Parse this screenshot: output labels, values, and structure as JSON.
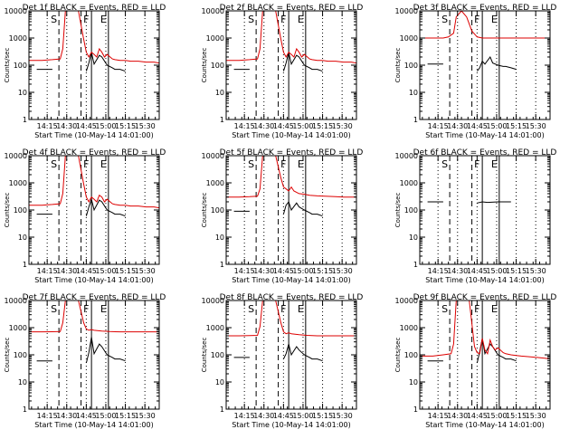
{
  "layout": {
    "rows": 3,
    "cols": 3
  },
  "colors": {
    "events": "#000000",
    "lld": "#dd0000",
    "axes": "#000000",
    "background": "#ffffff"
  },
  "common": {
    "x_tick_labels": [
      "14:15",
      "14:30",
      "14:45",
      "15:00",
      "15:15",
      "15:30"
    ],
    "y_tick_labels": [
      "1",
      "10",
      "100",
      "1000",
      "10000"
    ],
    "xlabel": "Start Time (10-May-14 14:01:00)",
    "ylabel": "Counts/sec"
  },
  "chart_data": [
    {
      "type": "line",
      "title": "Det 1f BLACK = Events, RED = LLD",
      "markers": [
        "S",
        "F",
        "E"
      ],
      "x_ticks_min": [
        14,
        29,
        44,
        59,
        74,
        89
      ],
      "xlim": [
        0,
        100
      ],
      "ylim": [
        1,
        10000
      ],
      "yscale": "log",
      "grid": "vertical-dotted",
      "dashed_lines_min": [
        23,
        40
      ],
      "solid_lines_min": [
        48,
        61
      ],
      "series": [
        {
          "name": "BLACK = Events",
          "x": [
            4,
            6,
            18,
            20,
            40,
            44,
            46,
            48,
            50,
            54,
            56,
            60,
            64,
            66,
            70,
            74,
            78
          ],
          "y": [
            null,
            70,
            70,
            null,
            null,
            60,
            120,
            300,
            110,
            230,
            200,
            100,
            80,
            70,
            70,
            60,
            null
          ],
          "segments": [
            [
              4,
              20,
              70
            ],
            [
              40,
              78,
              null
            ]
          ]
        },
        {
          "name": "RED = LLD",
          "x": [
            0,
            10,
            18,
            24,
            26,
            28,
            30,
            32,
            38,
            42,
            44,
            46,
            48,
            50,
            52,
            54,
            56,
            58,
            60,
            64,
            66,
            70,
            74,
            78,
            84,
            90,
            96,
            100
          ],
          "y": [
            150,
            150,
            160,
            170,
            400,
            10000,
            10000,
            10000,
            10000,
            900,
            300,
            200,
            300,
            250,
            200,
            400,
            300,
            200,
            250,
            170,
            160,
            150,
            150,
            140,
            140,
            130,
            130,
            120
          ]
        }
      ]
    },
    {
      "type": "line",
      "title": "Det 2f BLACK = Events, RED = LLD",
      "markers": [
        "S",
        "F",
        "E"
      ],
      "x_ticks_min": [
        14,
        29,
        44,
        59,
        74,
        89
      ],
      "xlim": [
        0,
        100
      ],
      "ylim": [
        1,
        10000
      ],
      "yscale": "log",
      "grid": "vertical-dotted",
      "dashed_lines_min": [
        23,
        40
      ],
      "solid_lines_min": [
        48,
        61
      ],
      "series": [
        {
          "name": "BLACK = Events",
          "x": [
            4,
            6,
            18,
            20,
            40,
            44,
            46,
            48,
            50,
            54,
            56,
            60,
            64,
            66,
            70,
            74,
            78
          ],
          "y": [
            null,
            70,
            70,
            null,
            null,
            60,
            120,
            300,
            110,
            230,
            200,
            100,
            80,
            70,
            70,
            60,
            null
          ]
        },
        {
          "name": "RED = LLD",
          "x": [
            0,
            10,
            18,
            24,
            26,
            28,
            30,
            32,
            38,
            42,
            44,
            46,
            48,
            50,
            52,
            54,
            56,
            58,
            60,
            64,
            66,
            70,
            74,
            78,
            84,
            90,
            96,
            100
          ],
          "y": [
            150,
            150,
            160,
            170,
            400,
            10000,
            10000,
            10000,
            10000,
            900,
            300,
            200,
            300,
            250,
            200,
            400,
            300,
            200,
            250,
            170,
            160,
            150,
            150,
            140,
            140,
            130,
            130,
            120
          ]
        }
      ]
    },
    {
      "type": "line",
      "title": "Det 3f BLACK = Events, RED = LLD",
      "markers": [
        "S",
        "F",
        "E"
      ],
      "x_ticks_min": [
        14,
        29,
        44,
        59,
        74,
        89
      ],
      "xlim": [
        0,
        100
      ],
      "ylim": [
        1,
        10000
      ],
      "yscale": "log",
      "grid": "vertical-dotted",
      "dashed_lines_min": [
        23,
        40
      ],
      "solid_lines_min": [
        48,
        61
      ],
      "series": [
        {
          "name": "BLACK = Events",
          "x": [
            4,
            6,
            18,
            20,
            40,
            44,
            46,
            48,
            50,
            54,
            56,
            60,
            64,
            66,
            70,
            74,
            78
          ],
          "y": [
            null,
            110,
            110,
            null,
            null,
            60,
            80,
            140,
            110,
            200,
            120,
            100,
            90,
            90,
            80,
            70,
            null
          ]
        },
        {
          "name": "RED = LLD",
          "x": [
            0,
            10,
            18,
            22,
            26,
            28,
            32,
            36,
            40,
            44,
            48,
            54,
            60,
            70,
            80,
            90,
            100
          ],
          "y": [
            1000,
            1000,
            1000,
            1100,
            1500,
            6000,
            10000,
            6000,
            1800,
            1100,
            1000,
            1000,
            1000,
            1000,
            1000,
            1000,
            1000
          ]
        }
      ]
    },
    {
      "type": "line",
      "title": "Det 4f BLACK = Events, RED = LLD",
      "markers": [
        "S",
        "F",
        "E"
      ],
      "x_ticks_min": [
        14,
        29,
        44,
        59,
        74,
        89
      ],
      "xlim": [
        0,
        100
      ],
      "ylim": [
        1,
        10000
      ],
      "yscale": "log",
      "grid": "vertical-dotted",
      "dashed_lines_min": [
        23,
        40
      ],
      "solid_lines_min": [
        48,
        61
      ],
      "series": [
        {
          "name": "BLACK = Events",
          "x": [
            4,
            6,
            18,
            20,
            40,
            44,
            46,
            48,
            50,
            54,
            56,
            60,
            64,
            66,
            70,
            74,
            78
          ],
          "y": [
            null,
            70,
            70,
            null,
            null,
            60,
            130,
            250,
            100,
            230,
            200,
            100,
            80,
            70,
            70,
            60,
            null
          ]
        },
        {
          "name": "RED = LLD",
          "x": [
            0,
            10,
            18,
            24,
            26,
            28,
            30,
            32,
            38,
            42,
            44,
            46,
            48,
            50,
            52,
            54,
            56,
            58,
            60,
            64,
            66,
            70,
            74,
            78,
            84,
            90,
            96,
            100
          ],
          "y": [
            150,
            150,
            160,
            170,
            400,
            10000,
            10000,
            10000,
            10000,
            900,
            300,
            200,
            300,
            250,
            200,
            350,
            300,
            200,
            250,
            170,
            160,
            150,
            150,
            140,
            140,
            130,
            130,
            120
          ]
        }
      ]
    },
    {
      "type": "line",
      "title": "Det 5f BLACK = Events, RED = LLD",
      "markers": [
        "S",
        "F",
        "E"
      ],
      "x_ticks_min": [
        14,
        29,
        44,
        59,
        74,
        89
      ],
      "xlim": [
        0,
        100
      ],
      "ylim": [
        1,
        10000
      ],
      "yscale": "log",
      "grid": "vertical-dotted",
      "dashed_lines_min": [
        23,
        40
      ],
      "solid_lines_min": [
        48,
        61
      ],
      "series": [
        {
          "name": "BLACK = Events",
          "x": [
            4,
            6,
            18,
            20,
            40,
            44,
            46,
            48,
            50,
            54,
            56,
            60,
            64,
            66,
            70,
            74,
            78
          ],
          "y": [
            null,
            90,
            90,
            null,
            null,
            70,
            150,
            200,
            100,
            180,
            130,
            100,
            80,
            70,
            70,
            60,
            null
          ]
        },
        {
          "name": "RED = LLD",
          "x": [
            0,
            10,
            18,
            24,
            26,
            28,
            30,
            32,
            38,
            42,
            44,
            46,
            48,
            50,
            52,
            56,
            60,
            64,
            70,
            76,
            84,
            90,
            96,
            100
          ],
          "y": [
            300,
            300,
            310,
            320,
            600,
            10000,
            10000,
            10000,
            10000,
            1500,
            700,
            600,
            500,
            700,
            500,
            400,
            380,
            350,
            330,
            320,
            310,
            300,
            300,
            300
          ]
        }
      ]
    },
    {
      "type": "line",
      "title": "Det 6f BLACK = Events, RED = LLD",
      "markers": [
        "S",
        "F",
        "E"
      ],
      "x_ticks_min": [
        14,
        29,
        44,
        59,
        74,
        89
      ],
      "xlim": [
        0,
        100
      ],
      "ylim": [
        1,
        10000
      ],
      "yscale": "log",
      "grid": "vertical-dotted",
      "dashed_lines_min": [
        23,
        40
      ],
      "solid_lines_min": [
        48,
        61
      ],
      "series": [
        {
          "name": "BLACK = Events",
          "x": [
            4,
            6,
            18,
            20,
            40,
            44,
            48,
            52,
            60,
            70,
            78
          ],
          "y": [
            null,
            200,
            200,
            null,
            null,
            180,
            200,
            190,
            200,
            200,
            null
          ]
        }
      ]
    },
    {
      "type": "line",
      "title": "Det 7f BLACK = Events, RED = LLD",
      "markers": [
        "S",
        "F",
        "E"
      ],
      "x_ticks_min": [
        14,
        29,
        44,
        59,
        74,
        89
      ],
      "xlim": [
        0,
        100
      ],
      "ylim": [
        1,
        10000
      ],
      "yscale": "log",
      "grid": "vertical-dotted",
      "dashed_lines_min": [
        23,
        40
      ],
      "solid_lines_min": [
        48,
        61
      ],
      "series": [
        {
          "name": "BLACK = Events",
          "x": [
            4,
            6,
            18,
            20,
            40,
            44,
            46,
            48,
            50,
            54,
            56,
            60,
            64,
            66,
            70,
            74,
            78
          ],
          "y": [
            null,
            60,
            60,
            null,
            null,
            50,
            120,
            450,
            110,
            250,
            200,
            100,
            80,
            70,
            70,
            60,
            null
          ]
        },
        {
          "name": "RED = LLD",
          "x": [
            0,
            10,
            18,
            24,
            26,
            28,
            30,
            32,
            38,
            42,
            44,
            46,
            48,
            50,
            56,
            62,
            70,
            80,
            90,
            100
          ],
          "y": [
            700,
            700,
            710,
            720,
            1500,
            10000,
            10000,
            10000,
            10000,
            1500,
            900,
            800,
            850,
            800,
            750,
            720,
            700,
            700,
            700,
            700
          ]
        }
      ]
    },
    {
      "type": "line",
      "title": "Det 8f BLACK = Events, RED = LLD",
      "markers": [
        "S",
        "F",
        "E"
      ],
      "x_ticks_min": [
        14,
        29,
        44,
        59,
        74,
        89
      ],
      "xlim": [
        0,
        100
      ],
      "ylim": [
        1,
        10000
      ],
      "yscale": "log",
      "grid": "vertical-dotted",
      "dashed_lines_min": [
        23,
        40
      ],
      "solid_lines_min": [
        48,
        61
      ],
      "series": [
        {
          "name": "BLACK = Events",
          "x": [
            4,
            6,
            18,
            20,
            40,
            44,
            46,
            48,
            50,
            54,
            56,
            60,
            64,
            66,
            70,
            74,
            78
          ],
          "y": [
            null,
            80,
            80,
            null,
            null,
            70,
            110,
            250,
            100,
            200,
            150,
            100,
            80,
            70,
            70,
            60,
            null
          ]
        },
        {
          "name": "RED = LLD",
          "x": [
            0,
            10,
            18,
            24,
            26,
            28,
            30,
            32,
            38,
            42,
            44,
            46,
            48,
            50,
            56,
            62,
            70,
            80,
            90,
            100
          ],
          "y": [
            500,
            500,
            510,
            520,
            1100,
            10000,
            10000,
            10000,
            10000,
            1500,
            700,
            600,
            650,
            600,
            550,
            520,
            500,
            500,
            500,
            500
          ]
        }
      ]
    },
    {
      "type": "line",
      "title": "Det 9f BLACK = Events, RED = LLD",
      "markers": [
        "S",
        "F",
        "E"
      ],
      "x_ticks_min": [
        14,
        29,
        44,
        59,
        74,
        89
      ],
      "xlim": [
        0,
        100
      ],
      "ylim": [
        1,
        10000
      ],
      "yscale": "log",
      "grid": "vertical-dotted",
      "dashed_lines_min": [
        23,
        40
      ],
      "solid_lines_min": [
        48,
        61
      ],
      "series": [
        {
          "name": "BLACK = Events",
          "x": [
            4,
            6,
            18,
            20,
            40,
            44,
            46,
            48,
            50,
            54,
            56,
            60,
            64,
            66,
            70,
            74,
            78
          ],
          "y": [
            null,
            60,
            60,
            null,
            null,
            50,
            130,
            400,
            110,
            250,
            200,
            100,
            80,
            70,
            70,
            60,
            null
          ]
        },
        {
          "name": "RED = LLD",
          "x": [
            0,
            10,
            18,
            24,
            26,
            28,
            30,
            32,
            38,
            42,
            44,
            46,
            48,
            50,
            52,
            54,
            56,
            58,
            60,
            64,
            66,
            70,
            74,
            78,
            84,
            90,
            96,
            100
          ],
          "y": [
            90,
            90,
            100,
            110,
            250,
            10000,
            10000,
            10000,
            10000,
            200,
            120,
            110,
            400,
            150,
            110,
            350,
            200,
            150,
            180,
            120,
            110,
            100,
            95,
            90,
            85,
            80,
            75,
            70
          ]
        }
      ]
    }
  ]
}
